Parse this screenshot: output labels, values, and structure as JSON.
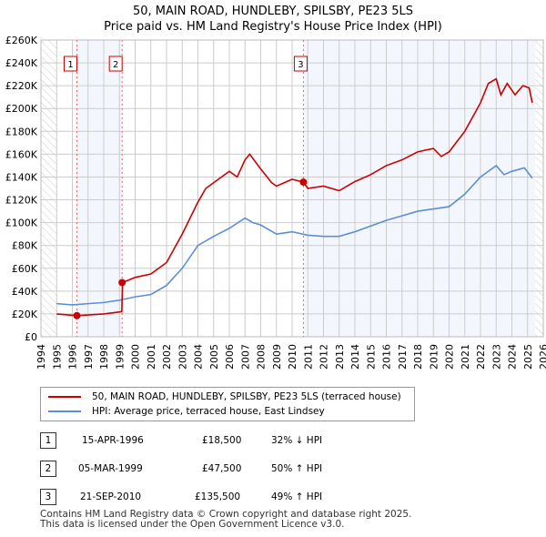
{
  "chart_data": {
    "type": "line",
    "title": "50, MAIN ROAD, HUNDLEBY, SPILSBY, PE23 5LS",
    "subtitle": "Price paid vs. HM Land Registry's House Price Index (HPI)",
    "xlim": [
      1994,
      2026
    ],
    "ylim": [
      0,
      260000
    ],
    "x_ticks": [
      "1994",
      "1995",
      "1996",
      "1997",
      "1998",
      "1999",
      "2000",
      "2001",
      "2002",
      "2003",
      "2004",
      "2005",
      "2006",
      "2007",
      "2008",
      "2009",
      "2010",
      "2011",
      "2012",
      "2013",
      "2014",
      "2015",
      "2016",
      "2017",
      "2018",
      "2019",
      "2020",
      "2021",
      "2022",
      "2023",
      "2024",
      "2025",
      "2026"
    ],
    "y_ticks": [
      "£0",
      "£20K",
      "£40K",
      "£60K",
      "£80K",
      "£100K",
      "£120K",
      "£140K",
      "£160K",
      "£180K",
      "£200K",
      "£220K",
      "£240K",
      "£260K"
    ],
    "grid": true,
    "series": [
      {
        "name": "50, MAIN ROAD, HUNDLEBY, SPILSBY, PE23 5LS (terraced house)",
        "color": "#cc0000",
        "x": [
          1995,
          1996.3,
          1998,
          1999.15,
          1999.2,
          2000,
          2001,
          2002,
          2003,
          2004,
          2004.5,
          2005,
          2006,
          2006.5,
          2007,
          2007.3,
          2008,
          2008.7,
          2009,
          2010,
          2010.72,
          2011,
          2012,
          2013,
          2014,
          2015,
          2016,
          2017,
          2018,
          2019,
          2019.5,
          2020,
          2021,
          2022,
          2022.5,
          2023,
          2023.3,
          2023.7,
          2024.2,
          2024.7,
          2025.1,
          2025.3
        ],
        "y": [
          20000,
          18500,
          20000,
          22000,
          47500,
          52000,
          55000,
          65000,
          90000,
          118000,
          130000,
          135000,
          145000,
          140000,
          155000,
          160000,
          147000,
          135000,
          132000,
          138000,
          135500,
          130000,
          132000,
          128000,
          136000,
          142000,
          150000,
          155000,
          162000,
          165000,
          158000,
          162000,
          180000,
          205000,
          222000,
          226000,
          212000,
          222000,
          212000,
          220000,
          218000,
          205000
        ]
      },
      {
        "name": "HPI: Average price, terraced house, East Lindsey",
        "color": "#5b8fd4",
        "x": [
          1995,
          1996,
          1997,
          1998,
          1999,
          2000,
          2001,
          2002,
          2003,
          2004,
          2005,
          2006,
          2007,
          2007.5,
          2008,
          2009,
          2010,
          2011,
          2012,
          2013,
          2014,
          2015,
          2016,
          2017,
          2018,
          2019,
          2020,
          2021,
          2022,
          2023,
          2023.5,
          2024,
          2024.8,
          2025.3
        ],
        "y": [
          29000,
          28000,
          29000,
          30000,
          32000,
          35000,
          37000,
          45000,
          60000,
          80000,
          88000,
          95000,
          104000,
          100000,
          98000,
          90000,
          92000,
          89000,
          88000,
          88000,
          92000,
          97000,
          102000,
          106000,
          110000,
          112000,
          114000,
          125000,
          140000,
          150000,
          142000,
          145000,
          148000,
          139000
        ]
      }
    ],
    "sales": [
      {
        "label": "1",
        "year": 1996.29,
        "price": 18500,
        "date": "15-APR-1996",
        "price_text": "£18,500",
        "hpi": "32% ↓ HPI"
      },
      {
        "label": "2",
        "year": 1999.17,
        "price": 47500,
        "date": "05-MAR-1999",
        "price_text": "£47,500",
        "hpi": "50% ↑ HPI"
      },
      {
        "label": "3",
        "year": 2010.72,
        "price": 135500,
        "date": "21-SEP-2010",
        "price_text": "£135,500",
        "hpi": "49% ↑ HPI"
      }
    ]
  },
  "footer": {
    "line1": "Contains HM Land Registry data © Crown copyright and database right 2025.",
    "line2": "This data is licensed under the Open Government Licence v3.0."
  }
}
